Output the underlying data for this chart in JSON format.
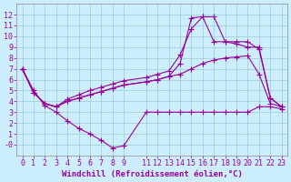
{
  "bg_color": "#cceeff",
  "line_color": "#990099",
  "grid_color": "#99cccc",
  "xlabel": "Windchill (Refroidissement éolien,°C)",
  "xlabel_fontsize": 6.5,
  "tick_fontsize": 6,
  "ylim": [
    -1,
    13
  ],
  "xlim": [
    -0.5,
    23.5
  ],
  "yticks": [
    0,
    1,
    2,
    3,
    4,
    5,
    6,
    7,
    8,
    9,
    10,
    11,
    12
  ],
  "xticks": [
    0,
    1,
    2,
    3,
    4,
    5,
    6,
    7,
    8,
    9,
    11,
    12,
    13,
    14,
    15,
    16,
    17,
    18,
    19,
    20,
    21,
    22,
    23
  ],
  "line1_x": [
    0,
    1,
    2,
    3,
    4,
    5,
    6,
    7,
    8,
    9,
    11,
    12,
    13,
    14,
    15,
    16,
    17,
    18,
    19,
    20,
    21,
    22,
    23
  ],
  "line1_y": [
    7.0,
    5.0,
    3.6,
    3.0,
    2.2,
    1.5,
    1.0,
    0.4,
    -0.3,
    -0.1,
    3.0,
    3.0,
    3.0,
    3.0,
    3.0,
    3.0,
    3.0,
    3.0,
    3.0,
    3.0,
    3.5,
    3.5,
    3.3
  ],
  "line2_x": [
    0,
    1,
    2,
    3,
    4,
    5,
    6,
    7,
    8,
    9,
    11,
    12,
    13,
    14,
    15,
    16,
    17,
    18,
    19,
    20,
    21,
    22,
    23
  ],
  "line2_y": [
    7.0,
    4.8,
    3.8,
    3.5,
    4.0,
    4.3,
    4.6,
    4.9,
    5.2,
    5.5,
    5.8,
    6.0,
    6.3,
    6.5,
    7.0,
    7.5,
    7.8,
    8.0,
    8.1,
    8.2,
    6.5,
    3.8,
    3.5
  ],
  "line3_x": [
    0,
    1,
    2,
    3,
    4,
    5,
    6,
    7,
    8,
    9,
    11,
    12,
    13,
    14,
    15,
    16,
    17,
    18,
    19,
    20,
    21,
    22,
    23
  ],
  "line3_y": [
    7.0,
    4.8,
    3.8,
    3.5,
    4.2,
    4.6,
    5.0,
    5.3,
    5.6,
    5.9,
    6.2,
    6.5,
    6.8,
    8.3,
    10.7,
    11.8,
    11.8,
    9.5,
    9.3,
    9.0,
    9.0,
    4.3,
    3.5
  ],
  "line4_x": [
    0,
    1,
    2,
    3,
    4,
    5,
    6,
    7,
    8,
    9,
    11,
    12,
    13,
    14,
    15,
    16,
    17,
    18,
    19,
    20,
    21,
    22,
    23
  ],
  "line4_y": [
    7.0,
    4.8,
    3.8,
    3.5,
    4.0,
    4.3,
    4.6,
    4.9,
    5.2,
    5.5,
    5.8,
    6.0,
    6.3,
    7.5,
    11.7,
    11.8,
    9.5,
    9.5,
    9.5,
    9.5,
    8.8,
    4.3,
    3.5
  ]
}
